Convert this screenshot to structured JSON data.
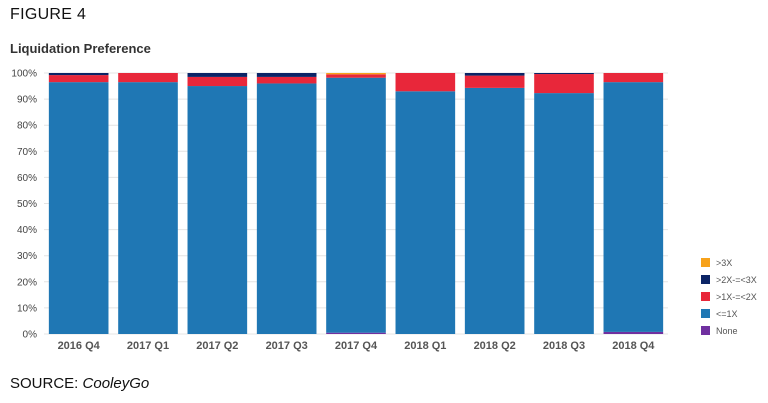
{
  "figure_label": "FIGURE 4",
  "source": {
    "prefix": "SOURCE: ",
    "name": "CooleyGo"
  },
  "chart_data": {
    "type": "bar",
    "stacked": true,
    "title": "Liquidation Preference",
    "xlabel": "",
    "ylabel": "",
    "ylim": [
      0,
      100
    ],
    "yticks": [
      "0%",
      "10%",
      "20%",
      "30%",
      "40%",
      "50%",
      "60%",
      "70%",
      "80%",
      "90%",
      "100%"
    ],
    "grid": true,
    "legend_position": "bottom-right",
    "categories": [
      "2016 Q4",
      "2017 Q1",
      "2017 Q2",
      "2017 Q3",
      "2017 Q4",
      "2018 Q1",
      "2018 Q2",
      "2018 Q3",
      "2018 Q4"
    ],
    "series": [
      {
        "name": "None",
        "color": "#7030a0",
        "values": [
          0,
          0,
          0,
          0,
          0.5,
          0,
          0,
          0,
          0.8
        ]
      },
      {
        "name": "<=1X",
        "color": "#1f77b4",
        "values": [
          96.5,
          96.5,
          95,
          96,
          97.7,
          93,
          94.3,
          92.3,
          95.7
        ]
      },
      {
        "name": ">1X-=<2X",
        "color": "#e8273a",
        "values": [
          2.7,
          3.5,
          3.5,
          2.5,
          1.3,
          7,
          4.7,
          7.3,
          3.5
        ]
      },
      {
        "name": ">2X-=<3X",
        "color": "#0b2466",
        "values": [
          0.8,
          0,
          1.5,
          1.5,
          0,
          0,
          1,
          0.4,
          0
        ]
      },
      {
        "name": ">3X",
        "color": "#f7a21b",
        "values": [
          0,
          0,
          0,
          0,
          0.5,
          0,
          0,
          0,
          0
        ]
      }
    ],
    "legend_order": [
      ">3X",
      ">2X-=<3X",
      ">1X-=<2X",
      "<=1X",
      "None"
    ]
  }
}
